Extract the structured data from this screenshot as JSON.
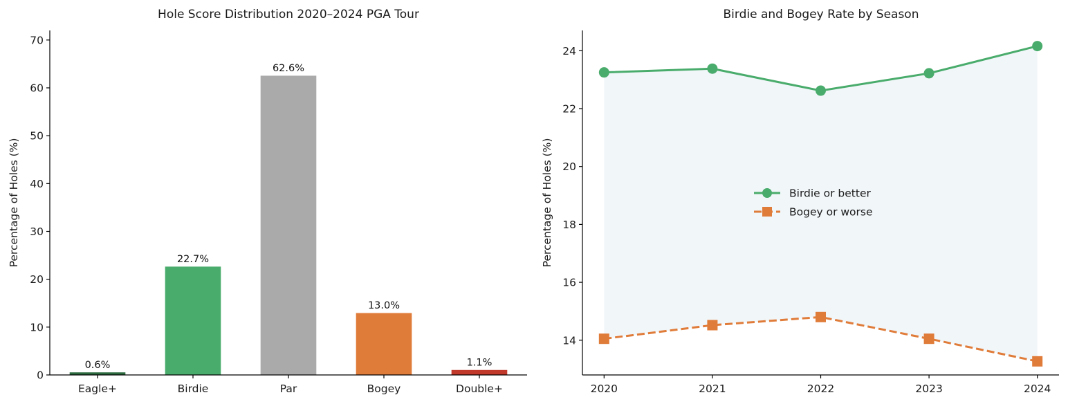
{
  "chart_data": [
    {
      "type": "bar",
      "title": "Hole Score Distribution 2020–2024 PGA Tour",
      "xlabel": "",
      "ylabel": "Percentage of Holes (%)",
      "categories": [
        "Eagle+",
        "Birdie",
        "Par",
        "Bogey",
        "Double+"
      ],
      "values": [
        0.6,
        22.7,
        62.6,
        13.0,
        1.1
      ],
      "data_labels": [
        "0.6%",
        "22.7%",
        "62.6%",
        "13.0%",
        "1.1%"
      ],
      "colors": [
        "#2d6a3e",
        "#4aac6c",
        "#aaaaaa",
        "#e07c3a",
        "#c0392b"
      ],
      "ylim": [
        0,
        72
      ],
      "yticks": [
        0,
        10,
        20,
        30,
        40,
        50,
        60,
        70
      ],
      "grid": false
    },
    {
      "type": "line",
      "title": "Birdie and Bogey Rate by Season",
      "xlabel": "",
      "ylabel": "Percentage of Holes (%)",
      "x": [
        2020,
        2021,
        2022,
        2023,
        2024
      ],
      "series": [
        {
          "name": "Birdie or better",
          "values": [
            23.25,
            23.38,
            22.62,
            23.22,
            24.16
          ],
          "color": "#4aac6c",
          "marker": "circle",
          "linestyle": "solid"
        },
        {
          "name": "Bogey or worse",
          "values": [
            14.05,
            14.52,
            14.8,
            14.05,
            13.27
          ],
          "color": "#e07c3a",
          "marker": "square",
          "linestyle": "dashed"
        }
      ],
      "fill_between": {
        "color": "#dbe9f0"
      },
      "xlim": [
        2019.8,
        2024.2
      ],
      "ylim": [
        12.8,
        24.7
      ],
      "yticks": [
        14,
        16,
        18,
        20,
        22,
        24
      ],
      "xticks": [
        2020,
        2021,
        2022,
        2023,
        2024
      ],
      "legend_position": "center",
      "grid": false
    }
  ]
}
